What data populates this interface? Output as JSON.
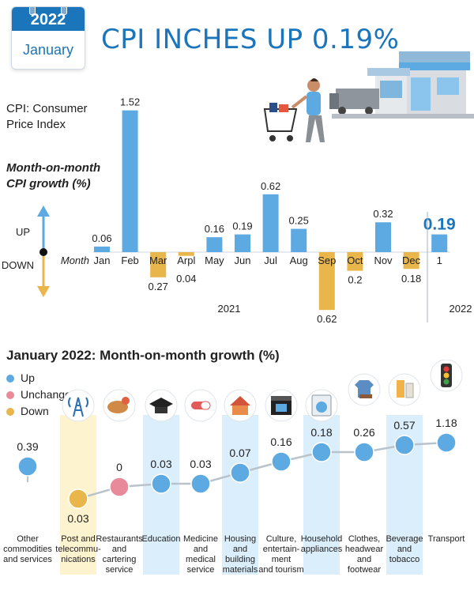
{
  "badge": {
    "year": "2022",
    "month": "January"
  },
  "title": "CPI INCHES UP 0.19%",
  "notes": {
    "cpi_line1": "CPI: Consumer",
    "cpi_line2": "Price Index",
    "mom_line1": "Month-on-month",
    "mom_line2": "CPI growth (%)",
    "up": "UP",
    "down": "DOWN",
    "month": "Month"
  },
  "colors": {
    "up": "#5da9e2",
    "down": "#e8b64a",
    "unchanged": "#e88a9a",
    "accent": "#1b75bb"
  },
  "chart_data": [
    {
      "type": "bar",
      "categories": [
        "Jan",
        "Feb",
        "Mar",
        "Arpl",
        "May",
        "Jun",
        "Jul",
        "Aug",
        "Sep",
        "Oct",
        "Nov",
        "Dec",
        "1"
      ],
      "values": [
        0.06,
        1.52,
        -0.27,
        -0.04,
        0.16,
        0.19,
        0.62,
        0.25,
        -0.62,
        -0.2,
        0.32,
        -0.18,
        0.19
      ],
      "labels": [
        "0.06",
        "1.52",
        "0.27",
        "0.04",
        "0.16",
        "0.19",
        "0.62",
        "0.25",
        "0.62",
        "0.2",
        "0.32",
        "0.18",
        "0.19"
      ],
      "period_labels": [
        "2021",
        "2022"
      ],
      "ylim": [
        -0.7,
        1.6
      ]
    },
    {
      "type": "scatter",
      "title": "January 2022: Month-on-month growth (%)",
      "legend": [
        "Up",
        "Unchanged",
        "Down"
      ],
      "categories": [
        [
          "Other",
          "commodities",
          "and services"
        ],
        [
          "Post and",
          "telecommu-",
          "nications"
        ],
        [
          "Restaurants",
          "and",
          "cartering",
          "service"
        ],
        [
          "Education"
        ],
        [
          "Medicine",
          "and",
          "medical",
          "service"
        ],
        [
          "Housing",
          "and",
          "building",
          "materials"
        ],
        [
          "Culture,",
          "entertain-",
          "ment",
          "and tourism"
        ],
        [
          "Household",
          "appliances"
        ],
        [
          "Clothes,",
          "headwear",
          "and",
          "footwear"
        ],
        [
          "Beverage",
          "and",
          "tobacco"
        ],
        [
          "Transport"
        ]
      ],
      "values": [
        0.39,
        -0.03,
        0,
        0.03,
        0.03,
        0.07,
        0.16,
        0.18,
        0.26,
        0.57,
        1.18
      ],
      "labels": [
        "0.39",
        "0.03",
        "0",
        "0.03",
        "0.03",
        "0.07",
        "0.16",
        "0.18",
        "0.26",
        "0.57",
        "1.18"
      ],
      "status": [
        "up",
        "down",
        "unchanged",
        "up",
        "up",
        "up",
        "up",
        "up",
        "up",
        "up",
        "up"
      ],
      "highlighted": [
        false,
        true,
        false,
        true,
        false,
        true,
        false,
        true,
        false,
        true,
        false
      ],
      "icons": [
        "none",
        "antenna-icon",
        "food-icon",
        "graduation-cap-icon",
        "pill-icon",
        "house-icon",
        "clapperboard-icon",
        "washing-machine-icon",
        "clothes-icon",
        "beverage-icon",
        "traffic-light-icon"
      ]
    }
  ]
}
